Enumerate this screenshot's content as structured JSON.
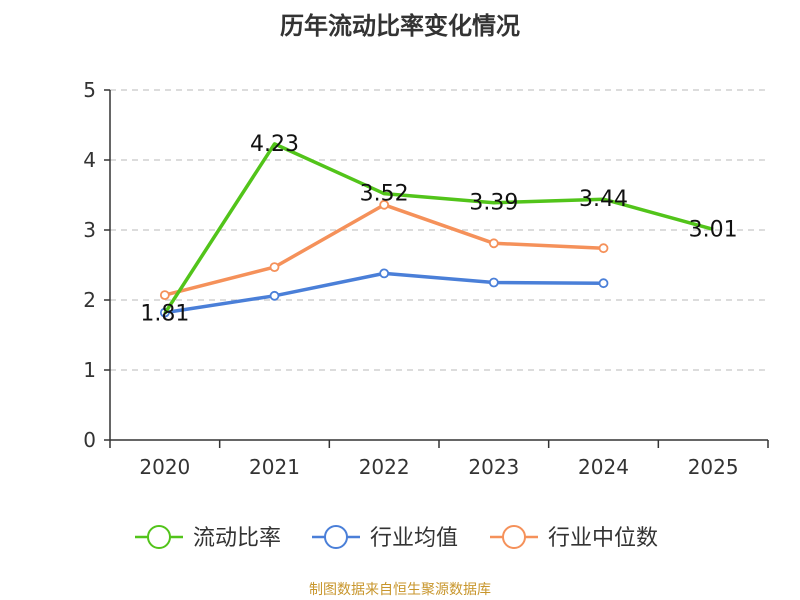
{
  "chart_data": {
    "type": "line",
    "title": "历年流动比率变化情况",
    "categories": [
      "2020",
      "2021",
      "2022",
      "2023",
      "2024",
      "2025"
    ],
    "ylim": [
      0,
      5
    ],
    "yticks": [
      0,
      1,
      2,
      3,
      4,
      5
    ],
    "grid": true,
    "legend_position": "bottom",
    "series": [
      {
        "name": "流动比率",
        "color": "#52c41a",
        "values": [
          1.81,
          4.23,
          3.52,
          3.39,
          3.44,
          3.01
        ],
        "labels": [
          "1.81",
          "4.23",
          "3.52",
          "3.39",
          "3.44",
          "3.01"
        ]
      },
      {
        "name": "行业均值",
        "color": "#4a7fd8",
        "values": [
          1.82,
          2.06,
          2.38,
          2.25,
          2.24,
          null
        ]
      },
      {
        "name": "行业中位数",
        "color": "#f5915a",
        "values": [
          2.07,
          2.47,
          3.36,
          2.81,
          2.74,
          null
        ]
      }
    ],
    "source": "制图数据来自恒生聚源数据库"
  }
}
